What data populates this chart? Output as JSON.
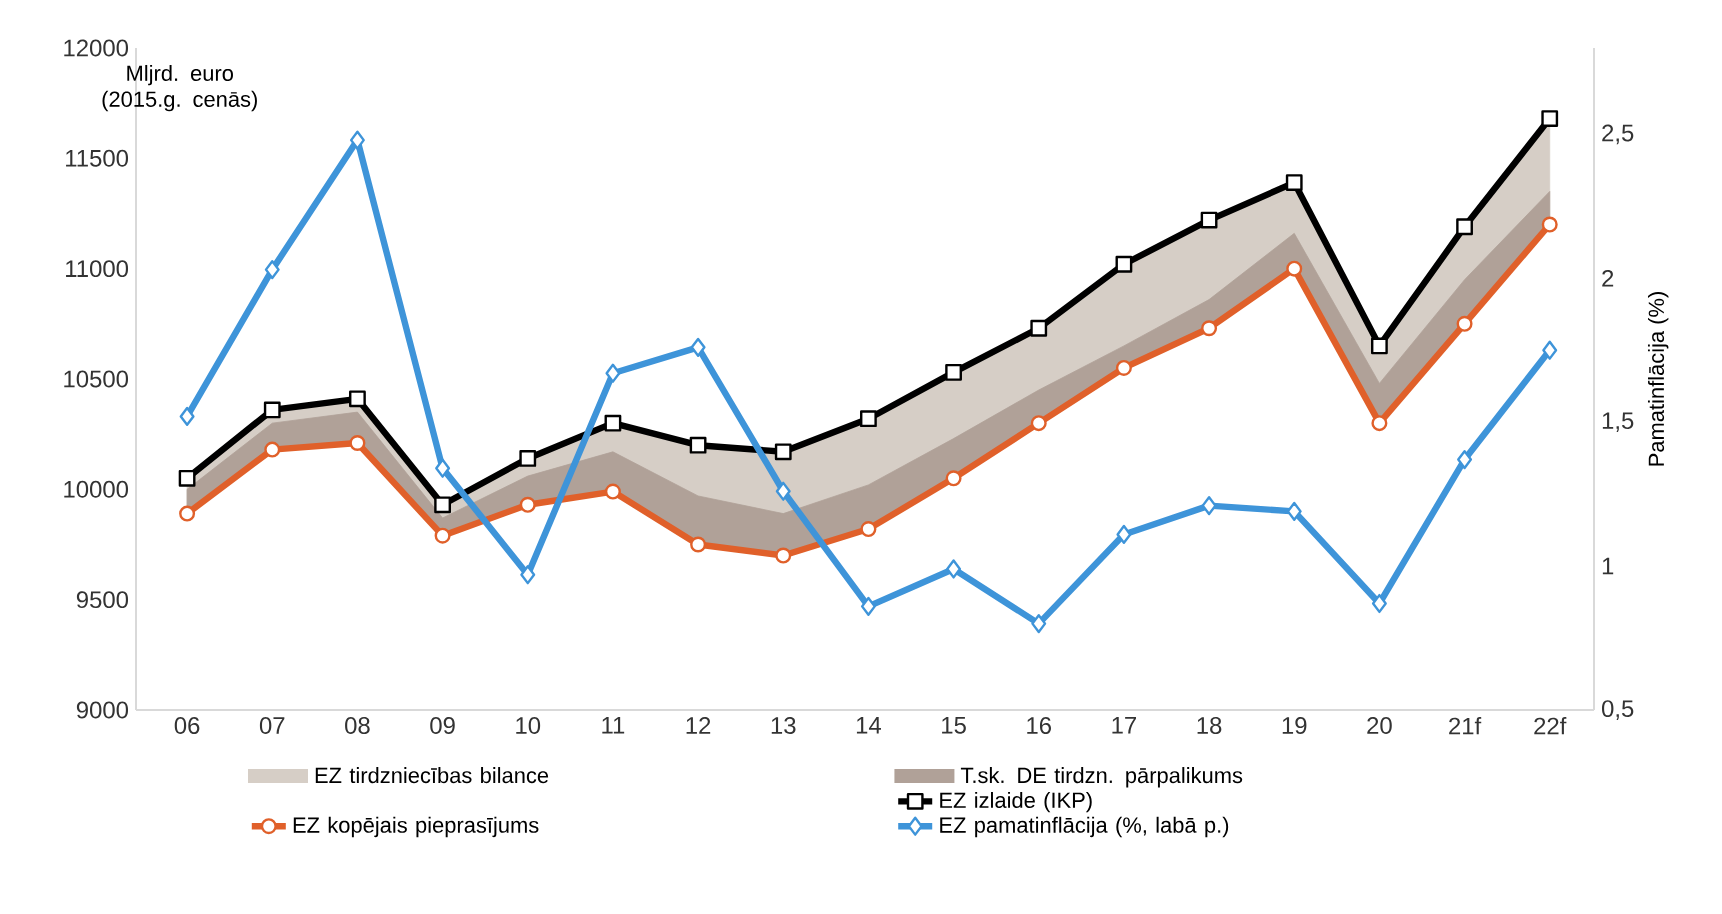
{
  "chart_data": {
    "type": "line",
    "ylabel": "Mljrd. euro (2015.g. cenās)",
    "y2label": "Pamatinflācija (%)",
    "annotations": [
      "EZ tirdzniecības bilance",
      "T.sk. DE tirdzn. pārpalikums"
    ],
    "categories": [
      "06",
      "07",
      "08",
      "09",
      "10",
      "11",
      "12",
      "13",
      "14",
      "15",
      "16",
      "17",
      "18",
      "19",
      "20",
      "21f",
      "22f"
    ],
    "ylim": [
      9000,
      12000
    ],
    "yticks": [
      9000,
      9500,
      10000,
      10500,
      11000,
      11500,
      12000
    ],
    "y2lim": [
      0.5,
      2.8
    ],
    "y2ticks": [
      {
        "value": 0.5,
        "label": "0,5"
      },
      1,
      {
        "value": 1.5,
        "label": "1,5"
      },
      2,
      {
        "value": 2.5,
        "label": "2,5"
      }
    ],
    "legend": "bottom",
    "series": [
      {
        "name": "EZ izlaide (IKP)",
        "color": "#000000",
        "marker": "square",
        "values": [
          10050,
          10360,
          10410,
          9930,
          10140,
          10300,
          10200,
          10170,
          10320,
          10530,
          10730,
          11020,
          11220,
          11390,
          10650,
          11190,
          11680
        ],
        "lower": [
          9890,
          10180,
          10210,
          9790,
          9930,
          9990,
          9750,
          9700,
          9820,
          10050,
          10300,
          10550,
          10730,
          11000,
          10300,
          10750,
          11200
        ],
        "upper": [
          10050,
          10360,
          10410,
          9930,
          10140,
          10300,
          10200,
          10170,
          10320,
          10530,
          10730,
          11020,
          11220,
          11390,
          10650,
          11190,
          11680
        ]
      },
      {
        "name": "EZ kopējais pieprasījums",
        "color": "#e0602a",
        "marker": "circle",
        "values": [
          9890,
          10180,
          10210,
          9790,
          9930,
          9990,
          9750,
          9700,
          9820,
          10050,
          10300,
          10550,
          10730,
          11000,
          10300,
          10750,
          11200
        ],
        "lower": [
          9890,
          10180,
          10210,
          9790,
          9930,
          9990,
          9750,
          9700,
          9820,
          10050,
          10300,
          10550,
          10730,
          11000,
          10300,
          10750,
          11200
        ],
        "upper": [
          10000,
          10300,
          10350,
          9870,
          10060,
          10170,
          9970,
          9890,
          10020,
          10230,
          10450,
          10650,
          10860,
          11160,
          10480,
          10950,
          11350
        ]
      },
      {
        "name": "EZ pamatinflācija (%, labā p.)",
        "color": "#3e94d9",
        "marker": "diamond",
        "axis": "y2",
        "values": [
          1.52,
          2.03,
          2.48,
          1.34,
          0.97,
          1.67,
          1.76,
          1.26,
          0.86,
          0.99,
          0.8,
          1.11,
          1.21,
          1.19,
          0.87,
          1.37,
          1.75
        ]
      }
    ]
  }
}
